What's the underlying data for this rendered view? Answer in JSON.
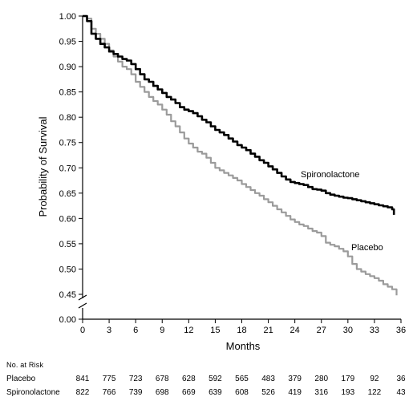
{
  "chart_data": {
    "type": "line",
    "xlabel": "Months",
    "ylabel": "Probability of Survival",
    "xlim": [
      0,
      36
    ],
    "x_ticks": [
      "0",
      "3",
      "6",
      "9",
      "12",
      "15",
      "18",
      "21",
      "24",
      "27",
      "30",
      "33",
      "36"
    ],
    "y_ticks": [
      "0.45",
      "0.50",
      "0.55",
      "0.60",
      "0.65",
      "0.70",
      "0.75",
      "0.80",
      "0.85",
      "0.90",
      "0.95",
      "1.00"
    ],
    "y_zero_label": "0.00",
    "y_range_shown": [
      0.45,
      1.0
    ],
    "y_axis_broken": true,
    "series": [
      {
        "name": "Spironolactone",
        "color": "#000000",
        "x": [
          0,
          0.5,
          1,
          1.5,
          2,
          2.5,
          3,
          3.5,
          4,
          4.5,
          5,
          5.5,
          6,
          6.5,
          7,
          7.5,
          8,
          8.5,
          9,
          9.5,
          10,
          10.5,
          11,
          11.5,
          12,
          12.5,
          13,
          13.5,
          14,
          14.5,
          15,
          15.5,
          16,
          16.5,
          17,
          17.5,
          18,
          18.5,
          19,
          19.5,
          20,
          20.5,
          21,
          21.5,
          22,
          22.5,
          23,
          23.5,
          24,
          24.5,
          25,
          25.5,
          26,
          26.5,
          27,
          27.5,
          28,
          28.5,
          29,
          29.5,
          30,
          30.5,
          31,
          31.5,
          32,
          32.5,
          33,
          33.5,
          34,
          34.5,
          35,
          35.2
        ],
        "y": [
          1.0,
          0.99,
          0.965,
          0.955,
          0.945,
          0.938,
          0.93,
          0.925,
          0.92,
          0.915,
          0.912,
          0.905,
          0.895,
          0.885,
          0.875,
          0.87,
          0.862,
          0.855,
          0.848,
          0.84,
          0.835,
          0.828,
          0.82,
          0.815,
          0.812,
          0.808,
          0.802,
          0.795,
          0.79,
          0.782,
          0.775,
          0.77,
          0.765,
          0.758,
          0.752,
          0.745,
          0.74,
          0.735,
          0.728,
          0.722,
          0.715,
          0.71,
          0.703,
          0.697,
          0.69,
          0.683,
          0.677,
          0.672,
          0.67,
          0.668,
          0.666,
          0.662,
          0.658,
          0.657,
          0.655,
          0.65,
          0.647,
          0.645,
          0.643,
          0.641,
          0.64,
          0.638,
          0.636,
          0.634,
          0.632,
          0.63,
          0.628,
          0.626,
          0.624,
          0.622,
          0.618,
          0.607
        ]
      },
      {
        "name": "Placebo",
        "color": "#9b9b9b",
        "x": [
          0,
          0.5,
          1,
          1.5,
          2,
          2.5,
          3,
          3.5,
          4,
          4.5,
          5,
          5.5,
          6,
          6.5,
          7,
          7.5,
          8,
          8.5,
          9,
          9.5,
          10,
          10.5,
          11,
          11.5,
          12,
          12.5,
          13,
          13.5,
          14,
          14.5,
          15,
          15.5,
          16,
          16.5,
          17,
          17.5,
          18,
          18.5,
          19,
          19.5,
          20,
          20.5,
          21,
          21.5,
          22,
          22.5,
          23,
          23.5,
          24,
          24.5,
          25,
          25.5,
          26,
          26.5,
          27,
          27.5,
          28,
          28.5,
          29,
          29.5,
          30,
          30.5,
          31,
          31.5,
          32,
          32.5,
          33,
          33.5,
          34,
          34.5,
          35,
          35.5
        ],
        "y": [
          1.0,
          0.995,
          0.975,
          0.965,
          0.955,
          0.945,
          0.932,
          0.92,
          0.91,
          0.9,
          0.895,
          0.885,
          0.87,
          0.86,
          0.85,
          0.84,
          0.832,
          0.825,
          0.815,
          0.805,
          0.792,
          0.782,
          0.77,
          0.758,
          0.748,
          0.74,
          0.732,
          0.728,
          0.72,
          0.71,
          0.7,
          0.695,
          0.69,
          0.685,
          0.68,
          0.675,
          0.668,
          0.662,
          0.656,
          0.65,
          0.645,
          0.638,
          0.632,
          0.625,
          0.618,
          0.612,
          0.605,
          0.598,
          0.593,
          0.588,
          0.585,
          0.58,
          0.575,
          0.572,
          0.565,
          0.552,
          0.548,
          0.545,
          0.54,
          0.535,
          0.525,
          0.51,
          0.5,
          0.495,
          0.49,
          0.486,
          0.482,
          0.477,
          0.47,
          0.465,
          0.46,
          0.448
        ]
      }
    ],
    "annotations": [
      {
        "text": "Spironolactone"
      },
      {
        "text": "Placebo"
      }
    ],
    "risk_table": {
      "title": "No. at Risk",
      "rows": [
        {
          "label": "Placebo",
          "values": [
            "841",
            "775",
            "723",
            "678",
            "628",
            "592",
            "565",
            "483",
            "379",
            "280",
            "179",
            "92",
            "36"
          ]
        },
        {
          "label": "Spironolactone",
          "values": [
            "822",
            "766",
            "739",
            "698",
            "669",
            "639",
            "608",
            "526",
            "419",
            "316",
            "193",
            "122",
            "43"
          ]
        }
      ]
    }
  }
}
